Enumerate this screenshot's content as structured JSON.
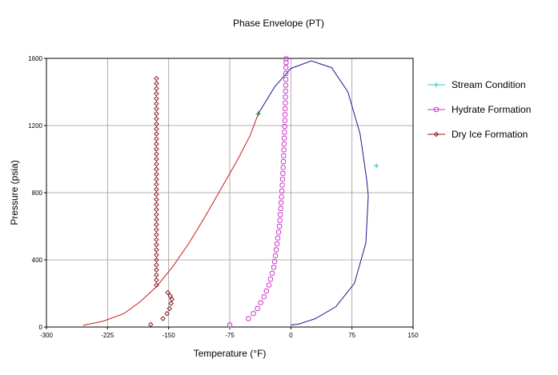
{
  "chart_data": {
    "type": "scatter",
    "title": "Phase Envelope (PT)",
    "xlabel": "Temperature (°F)",
    "ylabel": "Pressure (psia)",
    "xlim": [
      -300,
      150
    ],
    "ylim": [
      0,
      1600
    ],
    "xticks": [
      -300,
      -225,
      -150,
      -75,
      0,
      75,
      150
    ],
    "yticks": [
      0,
      400,
      800,
      1200,
      1600
    ],
    "grid": true,
    "legend_position": "right",
    "phase_envelope": {
      "color": "#1a1a8c",
      "bubble_points": [
        [
          -255,
          10
        ],
        [
          -230,
          35
        ],
        [
          -205,
          80
        ],
        [
          -185,
          150
        ],
        [
          -165,
          240
        ],
        [
          -145,
          360
        ],
        [
          -125,
          500
        ],
        [
          -105,
          660
        ],
        [
          -85,
          830
        ],
        [
          -65,
          1000
        ],
        [
          -50,
          1140
        ],
        [
          -40,
          1270
        ]
      ],
      "dew_points": [
        [
          -40,
          1270
        ],
        [
          -20,
          1430
        ],
        [
          0,
          1540
        ],
        [
          25,
          1585
        ],
        [
          50,
          1545
        ],
        [
          70,
          1400
        ],
        [
          85,
          1150
        ],
        [
          93,
          880
        ],
        [
          95,
          780
        ],
        [
          92,
          500
        ],
        [
          78,
          260
        ],
        [
          55,
          120
        ],
        [
          30,
          50
        ],
        [
          10,
          18
        ],
        [
          0,
          12
        ]
      ]
    },
    "series": [
      {
        "name": "Stream Condition",
        "color": "#33cccc",
        "marker": "plus",
        "x": [
          105
        ],
        "y": [
          960
        ]
      },
      {
        "name": "Hydrate Formation",
        "color": "#cc33cc",
        "marker": "square",
        "x": [
          -75,
          -52,
          -46,
          -41,
          -37,
          -33,
          -30,
          -27,
          -25,
          -23,
          -21,
          -20,
          -19,
          -18,
          -17,
          -16,
          -15,
          -14,
          -13.5,
          -13,
          -12.5,
          -12,
          -11.5,
          -11,
          -10.6,
          -10.2,
          -9.8,
          -9.5,
          -9.2,
          -8.9,
          -8.6,
          -8.3,
          -8,
          -7.8,
          -7.6,
          -7.4,
          -7.2,
          -7,
          -6.8,
          -6.6,
          -6.5,
          -6.3,
          -6.2,
          -6.1,
          -6,
          -5.9,
          -5.8
        ],
        "y": [
          12,
          50,
          80,
          110,
          145,
          180,
          215,
          250,
          285,
          320,
          355,
          390,
          425,
          460,
          495,
          530,
          565,
          600,
          635,
          670,
          705,
          740,
          775,
          810,
          845,
          880,
          915,
          950,
          985,
          1020,
          1055,
          1090,
          1125,
          1160,
          1195,
          1230,
          1265,
          1300,
          1335,
          1370,
          1405,
          1440,
          1475,
          1510,
          1545,
          1575,
          1598
        ]
      },
      {
        "name": "Dry Ice Formation",
        "color": "#8c1a1a",
        "marker": "diamond",
        "x": [
          -172,
          -157,
          -152,
          -149,
          -147,
          -146,
          -148,
          -151,
          -165,
          -165,
          -165,
          -165,
          -165,
          -165,
          -165,
          -165,
          -165,
          -165,
          -165,
          -165,
          -165,
          -165,
          -165,
          -165,
          -165,
          -165,
          -165,
          -165,
          -165,
          -165,
          -165,
          -165,
          -165,
          -165,
          -165,
          -165,
          -165,
          -165,
          -165,
          -165,
          -165,
          -165,
          -165,
          -165,
          -165,
          -165,
          -165,
          -165,
          -165,
          -165
        ],
        "y": [
          15,
          50,
          80,
          110,
          140,
          165,
          185,
          205,
          250,
          280,
          310,
          340,
          370,
          400,
          430,
          460,
          490,
          520,
          550,
          580,
          610,
          640,
          670,
          700,
          730,
          760,
          790,
          820,
          850,
          880,
          910,
          940,
          970,
          1000,
          1030,
          1060,
          1090,
          1120,
          1150,
          1180,
          1210,
          1240,
          1270,
          1300,
          1330,
          1360,
          1390,
          1420,
          1450,
          1480
        ]
      }
    ],
    "dry_ice_line": {
      "color": "#cc1a1a",
      "x": [
        -255,
        -230,
        -205,
        -185,
        -165,
        -145,
        -125,
        -105,
        -85,
        -65,
        -50,
        -40
      ],
      "y": [
        10,
        35,
        80,
        150,
        240,
        360,
        500,
        660,
        830,
        1000,
        1140,
        1270
      ]
    },
    "stream_marker_on_envelope": {
      "color": "#2a7a2a",
      "x": -40,
      "y": 1270
    }
  }
}
